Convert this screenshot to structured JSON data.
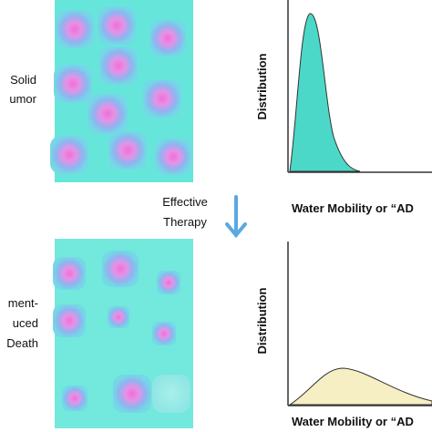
{
  "left_labels": {
    "top": [
      "Solid",
      "umor"
    ],
    "bottom": [
      "ment-",
      "uced",
      "Death"
    ]
  },
  "therapy": [
    "Effective",
    "Therapy"
  ],
  "plots": [
    {
      "y_label": "Distribution",
      "x_label": "Water Mobility or “AD"
    },
    {
      "y_label": "Distribution",
      "x_label": "Water Mobility or “AD"
    }
  ]
}
